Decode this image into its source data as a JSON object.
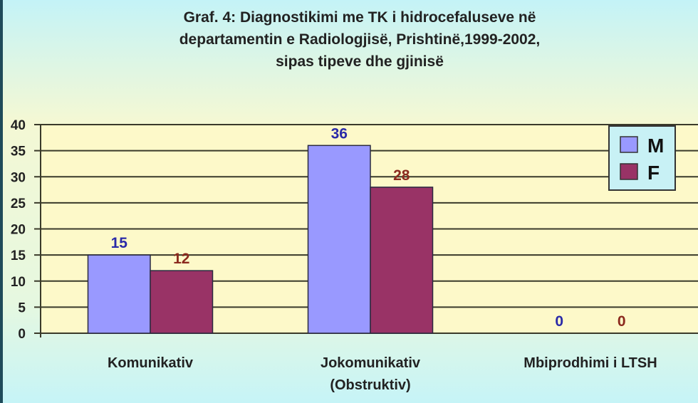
{
  "chart_data": {
    "type": "bar",
    "title_lines": [
      "Graf. 4: Diagnostikimi me TK i hidrocefaluseve në",
      "departamentin e Radiologjisë, Prishtinë,1999-2002,",
      "sipas tipeve dhe gjinisë"
    ],
    "categories": [
      [
        "Komunikativ"
      ],
      [
        "Jokomunikativ",
        "(Obstruktiv)"
      ],
      [
        "Mbiprodhimi i LTSH"
      ]
    ],
    "series": [
      {
        "name": "M",
        "values": [
          15,
          36,
          0
        ],
        "color": "#9999ff",
        "label_color": "#2a2aa8"
      },
      {
        "name": "F",
        "values": [
          12,
          28,
          0
        ],
        "color": "#993366",
        "label_color": "#8b2a1e"
      }
    ],
    "ylim": [
      0,
      40
    ],
    "yticks": [
      0,
      5,
      10,
      15,
      20,
      25,
      30,
      35,
      40
    ],
    "grid": true,
    "legend_position": "top-right",
    "xlabel": "",
    "ylabel": ""
  }
}
